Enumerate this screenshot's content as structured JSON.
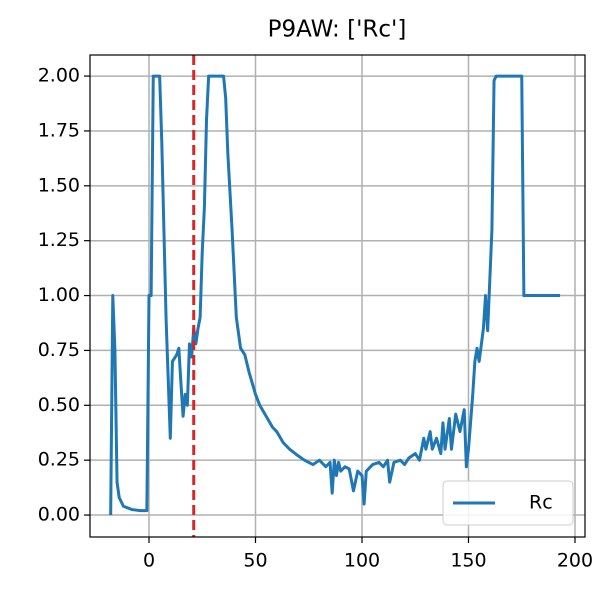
{
  "chart_data": {
    "type": "line",
    "title": "P9AW: ['Rc']",
    "x": [
      -18,
      -17,
      -16,
      -15,
      -14,
      -12,
      -8,
      -4,
      -1,
      0,
      1,
      2,
      5,
      6,
      8,
      10,
      11,
      13,
      14,
      15,
      16,
      17,
      18,
      19,
      20,
      21,
      22,
      23,
      24,
      25,
      26,
      27,
      28,
      35,
      36,
      37,
      39,
      41,
      43,
      45,
      47,
      50,
      52,
      55,
      58,
      60,
      63,
      66,
      70,
      73,
      77,
      80,
      83,
      85,
      86,
      87,
      88,
      89,
      90,
      92,
      94,
      96,
      98,
      100,
      101,
      102,
      105,
      108,
      110,
      112,
      113,
      115,
      118,
      120,
      122,
      125,
      127,
      129,
      130,
      132,
      133,
      135,
      137,
      138,
      139,
      141,
      142,
      144,
      146,
      148,
      149,
      150,
      152,
      153,
      154,
      155,
      157,
      158,
      159,
      161,
      162,
      163,
      175,
      176,
      193
    ],
    "series": [
      {
        "name": "Rc",
        "color": "#1f77b4",
        "values": [
          0,
          1.0,
          0.75,
          0.15,
          0.08,
          0.04,
          0.025,
          0.02,
          0.02,
          1.0,
          1.0,
          2.0,
          2.0,
          1.7,
          0.9,
          0.35,
          0.7,
          0.73,
          0.76,
          0.6,
          0.45,
          0.55,
          0.5,
          0.78,
          0.72,
          0.85,
          0.78,
          0.85,
          0.9,
          1.2,
          1.4,
          1.8,
          2.0,
          2.0,
          1.9,
          1.65,
          1.3,
          0.9,
          0.76,
          0.73,
          0.65,
          0.55,
          0.5,
          0.45,
          0.4,
          0.38,
          0.33,
          0.3,
          0.27,
          0.25,
          0.23,
          0.25,
          0.22,
          0.24,
          0.1,
          0.25,
          0.18,
          0.24,
          0.2,
          0.22,
          0.21,
          0.11,
          0.2,
          0.18,
          0.05,
          0.2,
          0.23,
          0.24,
          0.22,
          0.25,
          0.15,
          0.24,
          0.25,
          0.23,
          0.26,
          0.28,
          0.25,
          0.35,
          0.3,
          0.38,
          0.3,
          0.35,
          0.28,
          0.42,
          0.3,
          0.44,
          0.3,
          0.46,
          0.38,
          0.48,
          0.22,
          0.3,
          0.55,
          0.7,
          0.76,
          0.7,
          0.85,
          1.0,
          0.84,
          1.3,
          1.98,
          2.0,
          2.0,
          1.0,
          1.0
        ]
      }
    ],
    "vline": 21,
    "vline_color": "#d62728",
    "xlim": [
      -27.7,
      204.7
    ],
    "xticks": [
      0,
      50,
      100,
      150,
      200
    ],
    "ylim": [
      -0.1,
      2.096
    ],
    "yticks": [
      {
        "value": 0,
        "label": "0.00"
      },
      {
        "value": 0.25,
        "label": "0.25"
      },
      {
        "value": 0.5,
        "label": "0.50"
      },
      {
        "value": 0.75,
        "label": "0.75"
      },
      {
        "value": 1,
        "label": "1.00"
      },
      {
        "value": 1.25,
        "label": "1.25"
      },
      {
        "value": 1.5,
        "label": "1.50"
      },
      {
        "value": 1.75,
        "label": "1.75"
      },
      {
        "value": 2,
        "label": "2.00"
      }
    ],
    "grid": true,
    "legend": "lower right"
  }
}
